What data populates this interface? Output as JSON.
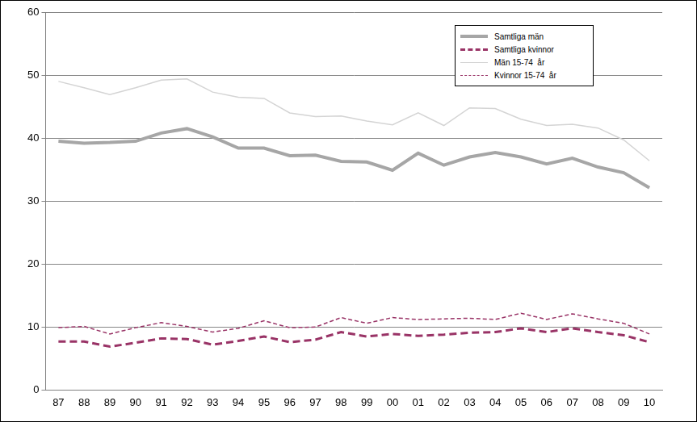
{
  "chart_data": {
    "type": "line",
    "categories": [
      "87",
      "88",
      "89",
      "90",
      "91",
      "92",
      "93",
      "94",
      "95",
      "96",
      "97",
      "98",
      "99",
      "00",
      "01",
      "02",
      "03",
      "04",
      "05",
      "06",
      "07",
      "08",
      "09",
      "10"
    ],
    "series": [
      {
        "name": "Samtliga män",
        "color": "#A6A6A6",
        "line_style": "solid",
        "values": [
          39.5,
          39.2,
          39.3,
          39.5,
          40.8,
          41.5,
          40.2,
          38.4,
          38.4,
          37.2,
          37.3,
          36.3,
          36.2,
          34.9,
          37.6,
          35.7,
          37.0,
          37.7,
          37.0,
          35.9,
          36.8,
          35.4,
          34.5,
          32.1
        ]
      },
      {
        "name": "Samtliga kvinnor",
        "color": "#993366",
        "line_style": "dashed",
        "values": [
          7.7,
          7.7,
          6.9,
          7.5,
          8.2,
          8.1,
          7.2,
          7.8,
          8.5,
          7.6,
          8.0,
          9.2,
          8.5,
          8.9,
          8.6,
          8.8,
          9.1,
          9.2,
          9.8,
          9.2,
          9.8,
          9.2,
          8.7,
          7.6
        ]
      },
      {
        "name": "Män 15-74  år",
        "color": "#D4D4D4",
        "line_style": "solid",
        "values": [
          49.0,
          48.0,
          46.9,
          48.0,
          49.2,
          49.4,
          47.3,
          46.5,
          46.3,
          44.0,
          43.4,
          43.5,
          42.7,
          42.1,
          44.0,
          42.0,
          44.8,
          44.7,
          43.0,
          42.0,
          42.2,
          41.6,
          39.7,
          36.4
        ]
      },
      {
        "name": "Kvinnor 15-74  år",
        "color": "#993366",
        "line_style": "dashed",
        "values": [
          9.9,
          10.1,
          8.9,
          9.9,
          10.7,
          10.1,
          9.2,
          9.8,
          11.0,
          9.9,
          10.0,
          11.5,
          10.6,
          11.5,
          11.2,
          11.3,
          11.4,
          11.2,
          12.2,
          11.2,
          12.1,
          11.3,
          10.6,
          8.9
        ]
      }
    ],
    "ylim": [
      0,
      60
    ],
    "yticks": [
      0,
      10,
      20,
      30,
      40,
      50,
      60
    ],
    "grid": true,
    "legend": "upper right"
  }
}
